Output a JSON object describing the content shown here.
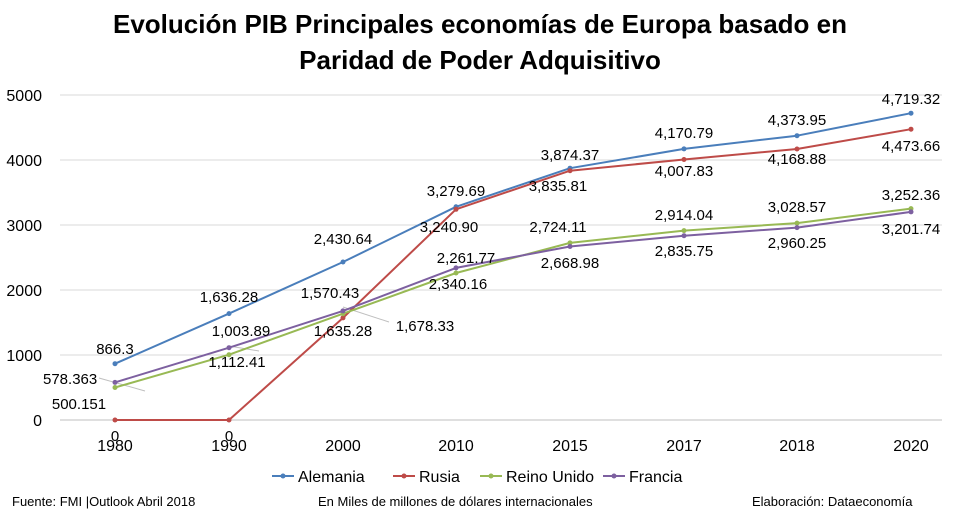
{
  "chart_data": {
    "type": "line",
    "title_line1": "Evolución PIB Principales economías de Europa basado en",
    "title_line2": "Paridad de Poder Adquisitivo",
    "categories": [
      "1980",
      "1990",
      "2000",
      "2010",
      "2015",
      "2017",
      "2018",
      "2020"
    ],
    "ylim": [
      0,
      5000
    ],
    "yticks": [
      "0",
      "1000",
      "2000",
      "3000",
      "4000",
      "5000"
    ],
    "grid": true,
    "legend_position": "bottom",
    "series": [
      {
        "name": "Alemania",
        "color": "#4a7ebb",
        "values": [
          866.3,
          1636.28,
          2430.64,
          3279.69,
          3874.37,
          4170.79,
          4373.95,
          4719.32
        ],
        "labels": [
          "866.3",
          "1,636.28",
          "2,430.64",
          "3,279.69",
          "3,874.37",
          "4,170.79",
          "4,373.95",
          "4,719.32"
        ]
      },
      {
        "name": "Rusia",
        "color": "#be4b48",
        "values": [
          0,
          0,
          1570.43,
          3240.9,
          3835.81,
          4007.83,
          4168.88,
          4473.66
        ],
        "labels": [
          "0",
          "0",
          "1,570.43",
          "3,240.90",
          "3,835.81",
          "4,007.83",
          "4,168.88",
          "4,473.66"
        ]
      },
      {
        "name": "Reino Unido",
        "color": "#98b954",
        "values": [
          500.151,
          1003.89,
          1635.28,
          2261.77,
          2724.11,
          2914.04,
          3028.57,
          3252.36
        ],
        "labels": [
          "500.151",
          "1,003.89",
          "1,635.28",
          "2,261.77",
          "2,724.11",
          "2,914.04",
          "3,028.57",
          "3,252.36"
        ]
      },
      {
        "name": "Francia",
        "color": "#7d60a0",
        "values": [
          578.363,
          1112.41,
          1678.33,
          2340.16,
          2668.98,
          2835.75,
          2960.25,
          3201.74
        ],
        "labels": [
          "578.363",
          "1,112.41",
          "1,678.33",
          "2,340.16",
          "2,668.98",
          "2,835.75",
          "2,960.25",
          "3,201.74"
        ]
      }
    ]
  },
  "footer": {
    "source": "Fuente: FMI |Outlook Abril 2018",
    "units": "En Miles de millones de dólares internacionales",
    "credit": "Elaboración: Dataeconomía"
  }
}
